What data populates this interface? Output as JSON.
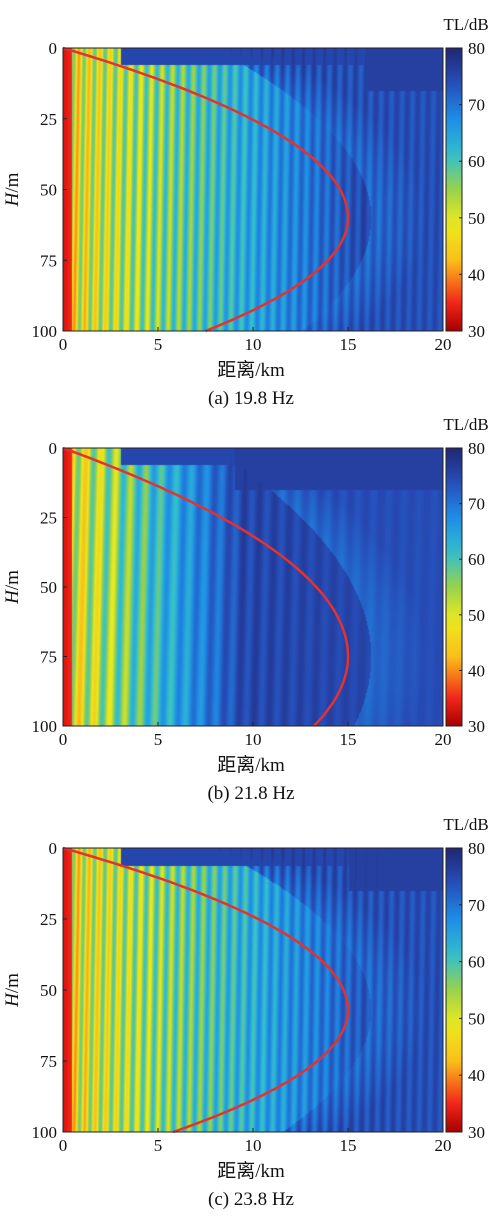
{
  "chart_data": [
    {
      "type": "heatmap",
      "caption": "(a) 19.8 Hz",
      "xlabel": "距离/km",
      "ylabel_main": "H",
      "ylabel_unit": "/m",
      "xlim": [
        0,
        20
      ],
      "ylim": [
        0,
        100
      ],
      "y_reversed": true,
      "x_ticks": [
        "0",
        "5",
        "10",
        "15",
        "20"
      ],
      "y_ticks": [
        "0",
        "25",
        "50",
        "75",
        "100"
      ],
      "colorbar": {
        "title": "TL/dB",
        "range": [
          30,
          80
        ],
        "ticks": [
          "30",
          "40",
          "50",
          "60",
          "70",
          "80"
        ]
      },
      "overlay_curve": {
        "color": "#e8312c",
        "vertex_range_km": 15,
        "vertex_depth_m": 60,
        "start": [
          0,
          0
        ],
        "end_at_100m_km": 7.5
      },
      "field": {
        "pattern_period_km": 0.55,
        "decay_range_km": 16,
        "fill_depth_m": 100,
        "surface_blue_start_km": 16
      }
    },
    {
      "type": "heatmap",
      "caption": "(b) 21.8 Hz",
      "xlabel": "距离/km",
      "ylabel_main": "H",
      "ylabel_unit": "/m",
      "xlim": [
        0,
        20
      ],
      "ylim": [
        0,
        100
      ],
      "y_reversed": true,
      "x_ticks": [
        "0",
        "5",
        "10",
        "15",
        "20"
      ],
      "y_ticks": [
        "0",
        "25",
        "50",
        "75",
        "100"
      ],
      "colorbar": {
        "title": "TL/dB",
        "range": [
          30,
          80
        ],
        "ticks": [
          "30",
          "40",
          "50",
          "60",
          "70",
          "80"
        ]
      },
      "overlay_curve": {
        "color": "#e8312c",
        "vertex_range_km": 15,
        "vertex_depth_m": 75,
        "start": [
          0,
          0
        ],
        "end_at_100m_km": 13.2
      },
      "field": {
        "pattern_period_km": 0.8,
        "decay_range_km": 9.5,
        "fill_depth_m": 100,
        "surface_blue_start_km": 9
      }
    },
    {
      "type": "heatmap",
      "caption": "(c) 23.8 Hz",
      "xlabel": "距离/km",
      "ylabel_main": "H",
      "ylabel_unit": "/m",
      "xlim": [
        0,
        20
      ],
      "ylim": [
        0,
        100
      ],
      "y_reversed": true,
      "x_ticks": [
        "0",
        "5",
        "10",
        "15",
        "20"
      ],
      "y_ticks": [
        "0",
        "25",
        "50",
        "75",
        "100"
      ],
      "colorbar": {
        "title": "TL/dB",
        "range": [
          30,
          80
        ],
        "ticks": [
          "30",
          "40",
          "50",
          "60",
          "70",
          "80"
        ]
      },
      "overlay_curve": {
        "color": "#e8312c",
        "vertex_range_km": 15,
        "vertex_depth_m": 57,
        "start": [
          0,
          0
        ],
        "end_at_100m_km": 5.8
      },
      "field": {
        "pattern_period_km": 0.55,
        "decay_range_km": 17,
        "fill_depth_m": 100,
        "surface_blue_start_km": 15
      }
    }
  ]
}
